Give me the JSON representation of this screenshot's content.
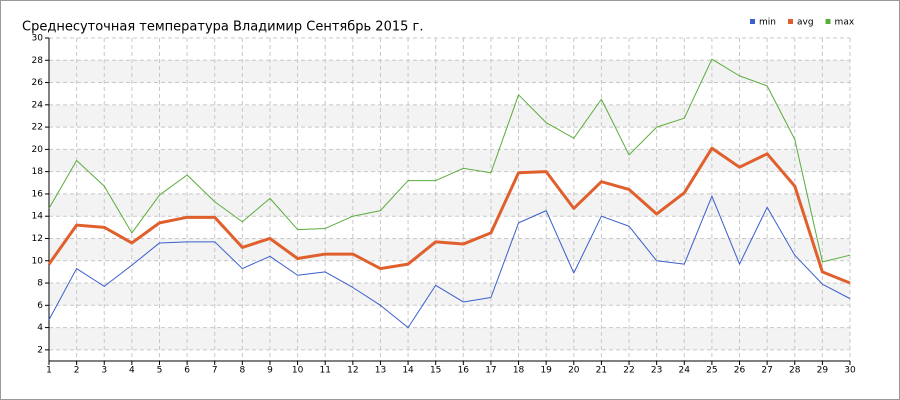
{
  "chart_data": {
    "type": "line",
    "title": "Среднесуточная температура Владимир  Сентябрь 2015 г.",
    "x": [
      1,
      2,
      3,
      4,
      5,
      6,
      7,
      8,
      9,
      10,
      11,
      12,
      13,
      14,
      15,
      16,
      17,
      18,
      19,
      20,
      21,
      22,
      23,
      24,
      25,
      26,
      27,
      28,
      29,
      30
    ],
    "xlim": [
      1,
      30
    ],
    "xticks": [
      1,
      2,
      3,
      4,
      5,
      6,
      7,
      8,
      9,
      10,
      11,
      12,
      13,
      14,
      15,
      16,
      17,
      18,
      19,
      20,
      21,
      22,
      23,
      24,
      25,
      26,
      27,
      28,
      29,
      30
    ],
    "ylim": [
      1,
      30
    ],
    "yticks": [
      2,
      4,
      6,
      8,
      10,
      12,
      14,
      16,
      18,
      20,
      22,
      24,
      26,
      28,
      30
    ],
    "grid": true,
    "legend": "top-right",
    "series": [
      {
        "name": "min",
        "color": "#3a5fcd",
        "values": [
          4.7,
          9.3,
          7.7,
          9.6,
          11.6,
          11.7,
          11.7,
          9.3,
          10.4,
          8.7,
          9.0,
          7.6,
          6.0,
          4.0,
          7.8,
          6.3,
          6.7,
          13.4,
          14.5,
          8.9,
          14.0,
          13.1,
          10.0,
          9.7,
          15.8,
          9.7,
          14.8,
          10.5,
          7.9,
          6.6
        ]
      },
      {
        "name": "avg",
        "color": "#e0602d",
        "values": [
          9.7,
          13.2,
          13.0,
          11.6,
          13.4,
          13.9,
          13.9,
          11.2,
          12.0,
          10.2,
          10.6,
          10.6,
          9.3,
          9.7,
          11.7,
          11.5,
          12.5,
          17.9,
          18.0,
          14.7,
          17.1,
          16.4,
          14.2,
          16.1,
          20.1,
          18.4,
          19.6,
          16.7,
          9.0,
          8.0
        ]
      },
      {
        "name": "max",
        "color": "#5aac3c",
        "values": [
          14.7,
          19.0,
          16.7,
          12.5,
          15.9,
          17.7,
          15.3,
          13.5,
          15.6,
          12.8,
          12.9,
          14.0,
          14.5,
          17.2,
          17.2,
          18.3,
          17.9,
          24.9,
          22.4,
          21.0,
          24.5,
          19.5,
          22.0,
          22.8,
          28.1,
          26.6,
          25.7,
          20.9,
          9.9,
          10.5
        ]
      }
    ]
  }
}
